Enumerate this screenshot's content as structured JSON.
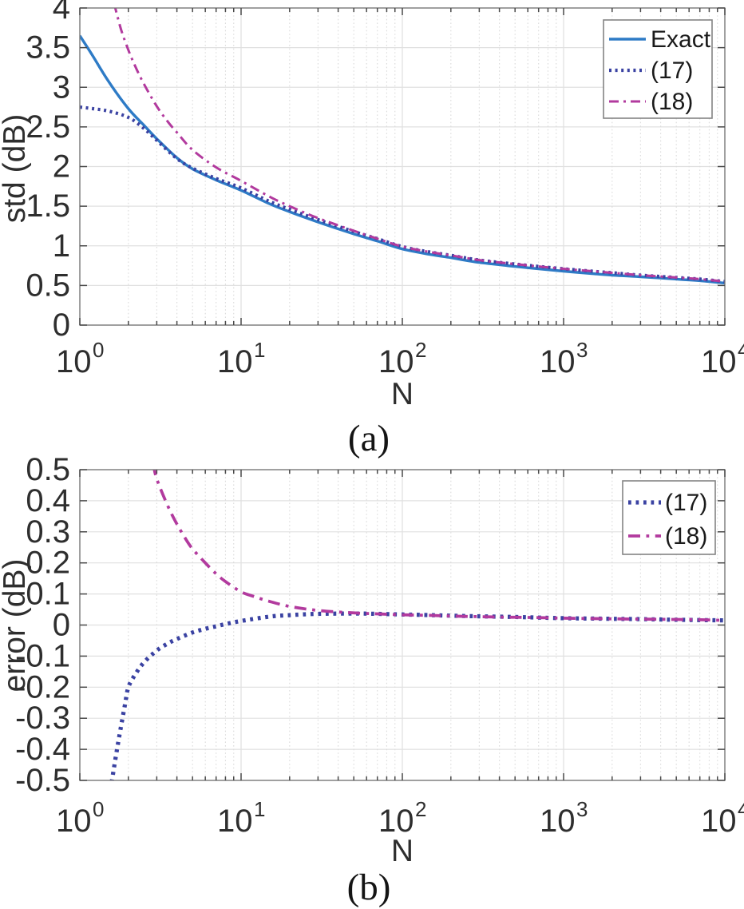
{
  "figure": {
    "captions": {
      "a": "(a)",
      "b": "(b)"
    }
  },
  "colors": {
    "exact_blue": "#2e7bc6",
    "dotted_indigo": "#3a42a2",
    "dashdot_magenta": "#b23a9e",
    "grid_major": "#e0e0e0",
    "grid_minor": "#dbdbdb",
    "axis": "#777777",
    "tick": "#4a4a4a",
    "text": "#2e2e2e",
    "legend_border": "#848484"
  },
  "chart_data": [
    {
      "id": "a",
      "type": "line",
      "title": "",
      "xlabel": "N",
      "ylabel": "std (dB)",
      "x_scale": "log",
      "xlim": [
        1,
        10000
      ],
      "ylim": [
        0,
        4
      ],
      "xtick_exponents": [
        0,
        1,
        2,
        3,
        4
      ],
      "xtick_labels": [
        "10^0",
        "10^1",
        "10^2",
        "10^3",
        "10^4"
      ],
      "yticks": [
        0,
        0.5,
        1,
        1.5,
        2,
        2.5,
        3,
        3.5,
        4
      ],
      "ytick_labels": [
        "0",
        "0.5",
        "1",
        "1.5",
        "2",
        "2.5",
        "3",
        "3.5",
        "4"
      ],
      "grid": true,
      "legend": {
        "position": "top-right",
        "entries": [
          "Exact",
          "(17)",
          "(18)"
        ]
      },
      "series": [
        {
          "name": "Exact",
          "color": "#2e7bc6",
          "style": "solid",
          "x": [
            1,
            1.2,
            1.5,
            2,
            2.5,
            3,
            4,
            5,
            7,
            10,
            15,
            20,
            30,
            50,
            70,
            100,
            150,
            200,
            300,
            500,
            700,
            1000,
            1500,
            2000,
            3000,
            5000,
            7000,
            10000
          ],
          "y": [
            3.65,
            3.4,
            3.08,
            2.73,
            2.52,
            2.35,
            2.11,
            1.97,
            1.83,
            1.7,
            1.53,
            1.43,
            1.3,
            1.15,
            1.06,
            0.96,
            0.89,
            0.85,
            0.79,
            0.74,
            0.71,
            0.68,
            0.65,
            0.63,
            0.61,
            0.58,
            0.56,
            0.53
          ]
        },
        {
          "name": "(17)",
          "color": "#3a42a2",
          "style": "dotted",
          "x": [
            1,
            1.2,
            1.5,
            2,
            2.5,
            3,
            4,
            5,
            7,
            10,
            15,
            20,
            30,
            50,
            70,
            100,
            150,
            200,
            300,
            500,
            700,
            1000,
            1500,
            2000,
            3000,
            5000,
            7000,
            10000
          ],
          "y": [
            2.75,
            2.73,
            2.7,
            2.62,
            2.48,
            2.33,
            2.1,
            1.98,
            1.85,
            1.73,
            1.56,
            1.46,
            1.33,
            1.18,
            1.09,
            0.99,
            0.92,
            0.88,
            0.82,
            0.77,
            0.74,
            0.71,
            0.68,
            0.66,
            0.63,
            0.6,
            0.58,
            0.55
          ]
        },
        {
          "name": "(18)",
          "color": "#b23a9e",
          "style": "dashdot",
          "x": [
            1.63,
            1.8,
            2,
            2.2,
            2.5,
            3,
            3.5,
            4,
            5,
            7,
            10,
            15,
            20,
            30,
            50,
            70,
            100,
            150,
            200,
            300,
            500,
            700,
            1000,
            1500,
            2000,
            3000,
            5000,
            7000,
            10000
          ],
          "y": [
            4.06,
            3.73,
            3.47,
            3.27,
            3.04,
            2.76,
            2.57,
            2.43,
            2.21,
            1.99,
            1.82,
            1.62,
            1.5,
            1.35,
            1.19,
            1.09,
            0.99,
            0.92,
            0.88,
            0.82,
            0.77,
            0.74,
            0.71,
            0.68,
            0.66,
            0.63,
            0.6,
            0.58,
            0.55
          ]
        }
      ]
    },
    {
      "id": "b",
      "type": "line",
      "title": "",
      "xlabel": "N",
      "ylabel": "error (dB)",
      "x_scale": "log",
      "xlim": [
        1,
        10000
      ],
      "ylim": [
        -0.5,
        0.5
      ],
      "xtick_exponents": [
        0,
        1,
        2,
        3,
        4
      ],
      "xtick_labels": [
        "10^0",
        "10^1",
        "10^2",
        "10^3",
        "10^4"
      ],
      "yticks": [
        -0.5,
        -0.4,
        -0.3,
        -0.2,
        -0.1,
        0,
        0.1,
        0.2,
        0.3,
        0.4,
        0.5
      ],
      "ytick_labels": [
        "-0.5",
        "-0.4",
        "-0.3",
        "-0.2",
        "-0.1",
        "0",
        "0.1",
        "0.2",
        "0.3",
        "0.4",
        "0.5"
      ],
      "grid": true,
      "legend": {
        "position": "top-right",
        "entries": [
          "(17)",
          "(18)"
        ]
      },
      "series": [
        {
          "name": "(17)",
          "color": "#3a42a2",
          "style": "dotted",
          "x": [
            1.55,
            1.7,
            1.9,
            2,
            2.2,
            2.5,
            3,
            3.5,
            4,
            5,
            6,
            7,
            8,
            10,
            15,
            20,
            30,
            50,
            70,
            100,
            150,
            200,
            300,
            500,
            700,
            1000,
            2000,
            3000,
            5000,
            7000,
            10000
          ],
          "y": [
            -0.53,
            -0.4,
            -0.26,
            -0.2,
            -0.16,
            -0.12,
            -0.082,
            -0.06,
            -0.045,
            -0.024,
            -0.012,
            -0.004,
            0.003,
            0.013,
            0.027,
            0.032,
            0.036,
            0.037,
            0.036,
            0.034,
            0.032,
            0.03,
            0.028,
            0.026,
            0.024,
            0.022,
            0.02,
            0.019,
            0.017,
            0.016,
            0.015
          ]
        },
        {
          "name": "(18)",
          "color": "#b23a9e",
          "style": "dashdot",
          "x": [
            2.85,
            3,
            3.5,
            4,
            4.5,
            5,
            6,
            7,
            8,
            10,
            12,
            15,
            20,
            30,
            50,
            70,
            100,
            150,
            200,
            300,
            500,
            700,
            1000,
            2000,
            3000,
            5000,
            7000,
            10000
          ],
          "y": [
            0.52,
            0.47,
            0.385,
            0.325,
            0.28,
            0.245,
            0.2,
            0.165,
            0.14,
            0.107,
            0.092,
            0.076,
            0.06,
            0.047,
            0.039,
            0.036,
            0.033,
            0.031,
            0.029,
            0.027,
            0.025,
            0.024,
            0.022,
            0.02,
            0.019,
            0.018,
            0.017,
            0.015
          ]
        }
      ]
    }
  ]
}
